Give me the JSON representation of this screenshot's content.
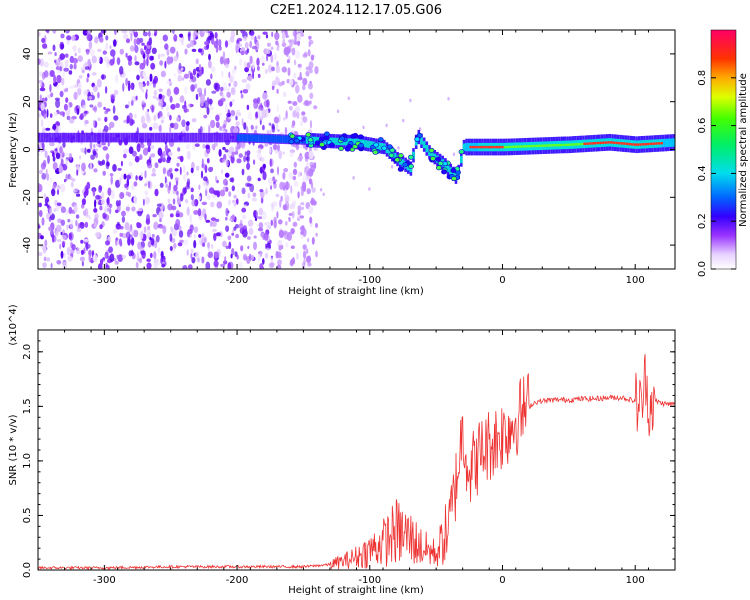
{
  "title": "C2E1.2024.112.17.05.G06",
  "chart_data": [
    {
      "type": "heatmap",
      "xlabel": "Height of straight line (km)",
      "ylabel": "Frequency (Hz)",
      "xlim": [
        -350,
        130
      ],
      "ylim": [
        -50,
        50
      ],
      "xticks": [
        -300,
        -200,
        -100,
        0,
        100
      ],
      "yticks": [
        -40,
        -20,
        0,
        20,
        40
      ],
      "colorbar": {
        "label": "Normalized spectral amplitude",
        "range": [
          0,
          1
        ],
        "ticks": [
          0.0,
          0.2,
          0.4,
          0.6,
          0.8
        ]
      },
      "features": {
        "noise_region_x": [
          -350,
          -140
        ],
        "main_line_track": [
          [
            -350,
            5
          ],
          [
            -200,
            5
          ],
          [
            -150,
            4
          ],
          [
            -110,
            3
          ],
          [
            -90,
            1
          ],
          [
            -80,
            -4
          ],
          [
            -70,
            -8
          ],
          [
            -65,
            6
          ],
          [
            -55,
            -2
          ],
          [
            -45,
            -6
          ],
          [
            -35,
            -12
          ],
          [
            -30,
            1
          ],
          [
            0,
            1
          ],
          [
            50,
            2
          ],
          [
            80,
            3
          ],
          [
            100,
            2
          ],
          [
            130,
            3
          ]
        ],
        "grid": false
      }
    },
    {
      "type": "line",
      "xlabel": "Height of straight line (km)",
      "ylabel": "SNR (10 * v/v)",
      "yscale_label": "(x10^4)",
      "xlim": [
        -350,
        130
      ],
      "ylim": [
        0,
        2.2
      ],
      "xticks": [
        -300,
        -200,
        -100,
        0,
        100
      ],
      "yticks": [
        0.0,
        0.5,
        1.0,
        1.5,
        2.0
      ],
      "color": "#ee3333",
      "series": [
        {
          "x": [
            -350,
            -300,
            -250,
            -200,
            -150,
            -130,
            -120,
            -110,
            -100,
            -90,
            -80,
            -70,
            -60,
            -50,
            -40,
            -35,
            -30,
            -25,
            -20,
            -15,
            -10,
            -5,
            0,
            5,
            10,
            15,
            20,
            25,
            30,
            40,
            50,
            60,
            70,
            80,
            90,
            100,
            105,
            108,
            110,
            115,
            120,
            125,
            130
          ],
          "values": [
            0.02,
            0.02,
            0.03,
            0.03,
            0.03,
            0.05,
            0.08,
            0.12,
            0.18,
            0.25,
            0.35,
            0.3,
            0.2,
            0.15,
            0.4,
            0.8,
            1.3,
            0.9,
            1.0,
            1.1,
            1.15,
            1.2,
            1.25,
            1.3,
            1.38,
            1.45,
            1.5,
            1.54,
            1.55,
            1.56,
            1.56,
            1.57,
            1.57,
            1.58,
            1.58,
            1.55,
            1.5,
            1.8,
            1.5,
            1.55,
            1.53,
            1.52,
            1.52
          ]
        }
      ]
    }
  ]
}
